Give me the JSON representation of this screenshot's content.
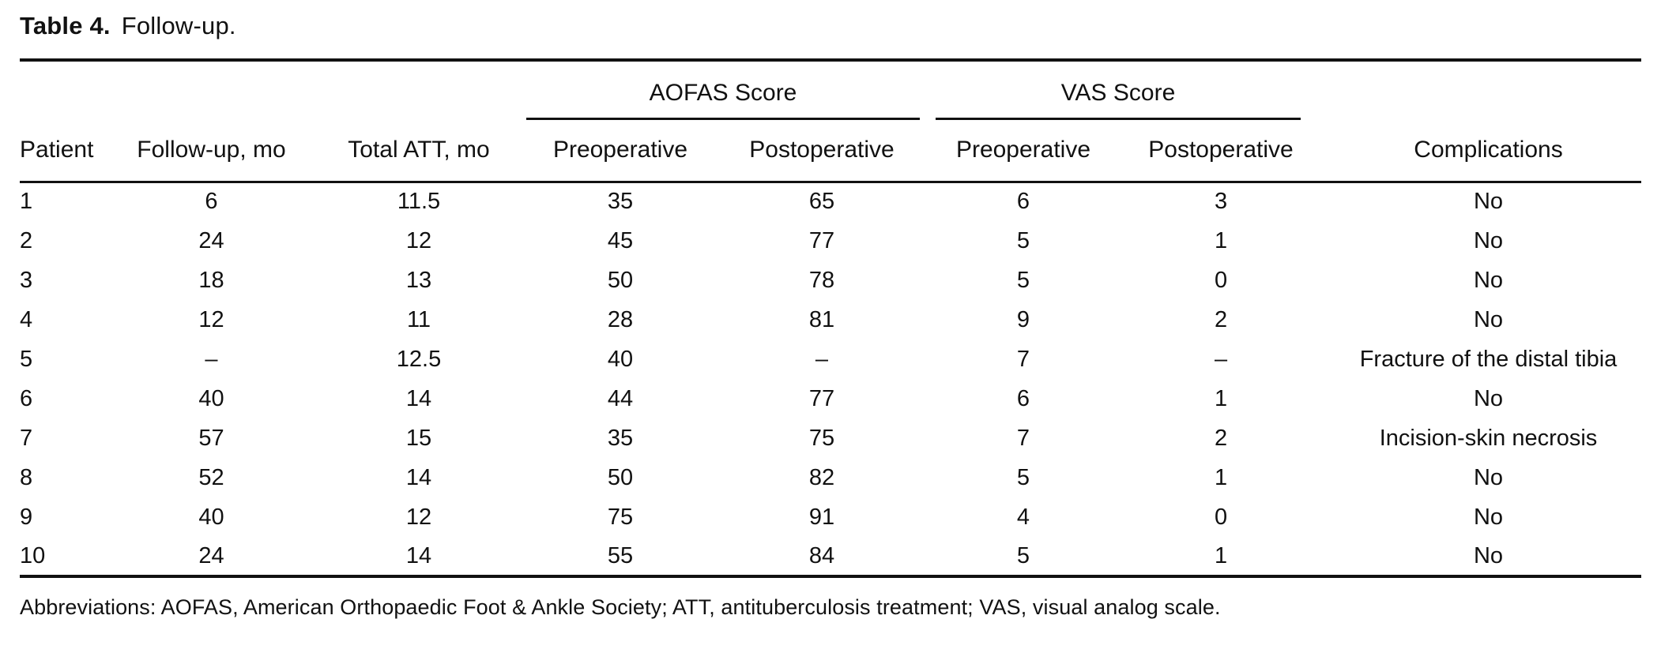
{
  "table": {
    "title_label": "Table 4.",
    "title_text": "Follow-up.",
    "spanners": [
      {
        "label": "AOFAS Score"
      },
      {
        "label": "VAS Score"
      }
    ],
    "columns": [
      "Patient",
      "Follow-up, mo",
      "Total ATT, mo",
      "Preoperative",
      "Postoperative",
      "Preoperative",
      "Postoperative",
      "Complications"
    ],
    "rows": [
      [
        "1",
        "6",
        "11.5",
        "35",
        "65",
        "6",
        "3",
        "No"
      ],
      [
        "2",
        "24",
        "12",
        "45",
        "77",
        "5",
        "1",
        "No"
      ],
      [
        "3",
        "18",
        "13",
        "50",
        "78",
        "5",
        "0",
        "No"
      ],
      [
        "4",
        "12",
        "11",
        "28",
        "81",
        "9",
        "2",
        "No"
      ],
      [
        "5",
        "–",
        "12.5",
        "40",
        "–",
        "7",
        "–",
        "Fracture of the distal tibia"
      ],
      [
        "6",
        "40",
        "14",
        "44",
        "77",
        "6",
        "1",
        "No"
      ],
      [
        "7",
        "57",
        "15",
        "35",
        "75",
        "7",
        "2",
        "Incision-skin necrosis"
      ],
      [
        "8",
        "52",
        "14",
        "50",
        "82",
        "5",
        "1",
        "No"
      ],
      [
        "9",
        "40",
        "12",
        "75",
        "91",
        "4",
        "0",
        "No"
      ],
      [
        "10",
        "24",
        "14",
        "55",
        "84",
        "5",
        "1",
        "No"
      ]
    ],
    "footnote": "Abbreviations: AOFAS, American Orthopaedic Foot & Ankle Society; ATT, antituberculosis treatment; VAS, visual analog scale."
  }
}
